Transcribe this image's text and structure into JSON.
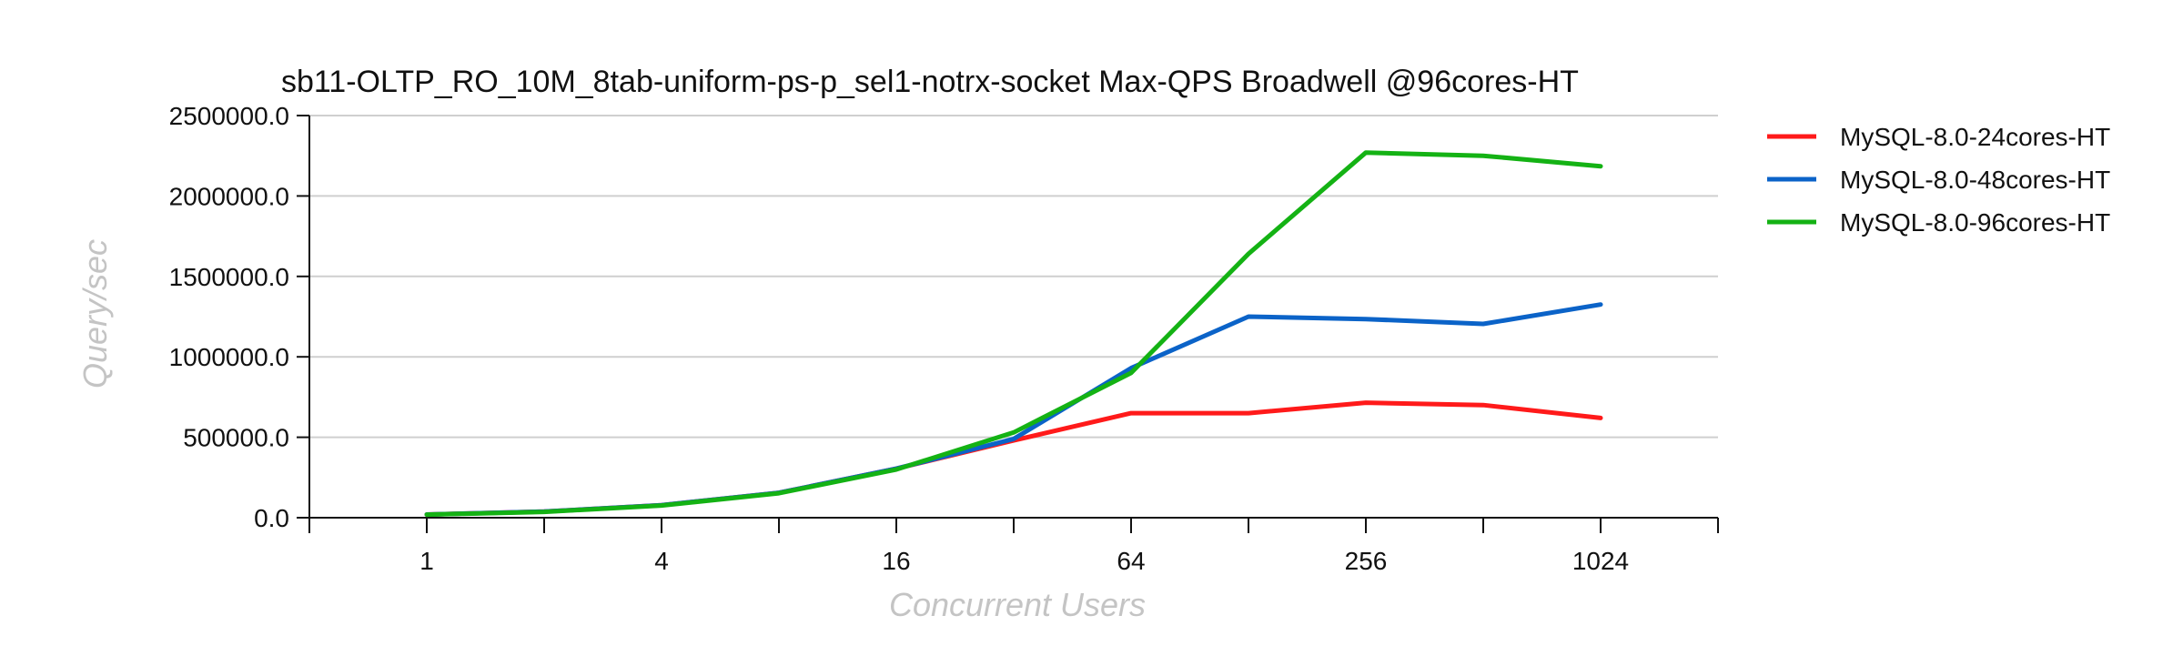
{
  "chart_data": {
    "type": "line",
    "title": "sb11-OLTP_RO_10M_8tab-uniform-ps-p_sel1-notrx-socket Max-QPS Broadwell @96cores-HT",
    "xlabel": "Concurrent Users",
    "ylabel": "Query/sec",
    "x_scale": "log2",
    "x": [
      1,
      2,
      4,
      8,
      16,
      32,
      64,
      128,
      256,
      512,
      1024
    ],
    "x_tick_labels": [
      "1",
      "4",
      "16",
      "64",
      "256",
      "1024"
    ],
    "x_tick_values": [
      1,
      4,
      16,
      64,
      256,
      1024
    ],
    "xlim": [
      0.5,
      2048
    ],
    "ylim": [
      0,
      2500000
    ],
    "y_ticks": [
      0,
      500000,
      1000000,
      1500000,
      2000000,
      2500000
    ],
    "y_tick_labels": [
      "0.0",
      "500000.0",
      "1000000.0",
      "1500000.0",
      "2000000.0",
      "2500000.0"
    ],
    "grid": "horizontal",
    "legend_position": "right",
    "series": [
      {
        "name": "MySQL-8.0-24cores-HT",
        "color": "#ff1a1a",
        "values": [
          20000,
          38000,
          78000,
          155000,
          305000,
          480000,
          650000,
          650000,
          715000,
          700000,
          620000
        ]
      },
      {
        "name": "MySQL-8.0-48cores-HT",
        "color": "#0b63c8",
        "values": [
          20000,
          38000,
          78000,
          155000,
          305000,
          490000,
          930000,
          1250000,
          1235000,
          1205000,
          1325000
        ]
      },
      {
        "name": "MySQL-8.0-96cores-HT",
        "color": "#14b214",
        "values": [
          19000,
          36000,
          76000,
          152000,
          300000,
          530000,
          900000,
          1640000,
          2270000,
          2250000,
          2185000
        ]
      }
    ]
  }
}
